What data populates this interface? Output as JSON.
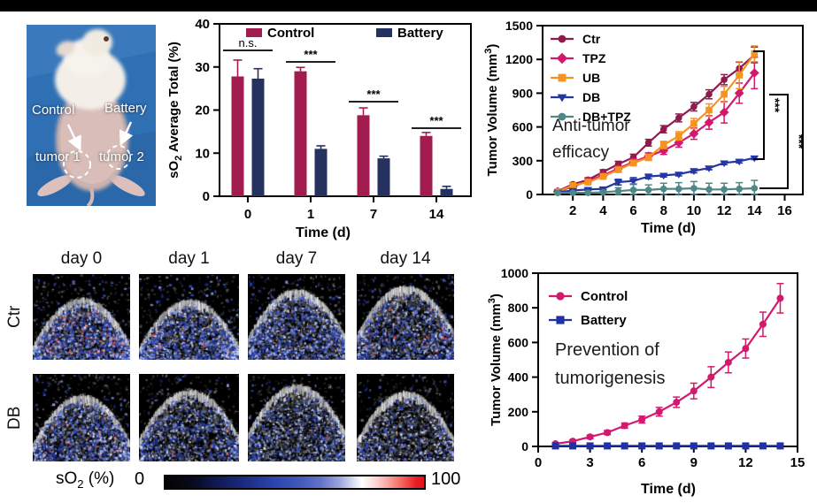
{
  "figure": {
    "background": "#ffffff",
    "top_bar_color": "#000000"
  },
  "mouse_panel": {
    "labels": {
      "control": "Control",
      "battery": "Battery",
      "tumor1": "tumor 1",
      "tumor2": "tumor 2"
    }
  },
  "ultrasound_panel": {
    "col_headers": [
      "day 0",
      "day 1",
      "day 7",
      "day 14"
    ],
    "row_labels": [
      "Ctr",
      "DB"
    ],
    "colorbar": {
      "label_prefix": "sO",
      "label_sub": "2",
      "label_suffix": " (%)",
      "min_label": "0",
      "max_label": "100"
    }
  },
  "chart_data": [
    {
      "id": "so2_bar",
      "type": "bar",
      "title": "",
      "xlabel": "Time (d)",
      "ylabel": "sO2 Average Total (%)",
      "ylabel_parts": {
        "prefix": "sO",
        "sub": "2",
        "suffix": " Average Total (%)"
      },
      "categories": [
        "0",
        "1",
        "7",
        "14"
      ],
      "ylim": [
        0,
        40
      ],
      "yticks": [
        0,
        10,
        20,
        30,
        40
      ],
      "legend_position": "top-inside",
      "series": [
        {
          "name": "Control",
          "color": "#A21C50",
          "values": [
            27.8,
            29.0,
            18.8,
            14.0
          ],
          "errors": [
            3.8,
            0.9,
            1.7,
            0.8
          ]
        },
        {
          "name": "Battery",
          "color": "#25325F",
          "values": [
            27.3,
            11.0,
            8.8,
            1.7
          ],
          "errors": [
            2.3,
            0.7,
            0.5,
            0.6
          ]
        }
      ],
      "significance": [
        {
          "group": 0,
          "label": "n.s."
        },
        {
          "group": 1,
          "label": "***"
        },
        {
          "group": 2,
          "label": "***"
        },
        {
          "group": 3,
          "label": "***"
        }
      ]
    },
    {
      "id": "antitumor",
      "type": "line",
      "title": "",
      "xlabel": "Time (d)",
      "ylabel": "Tumor Volume (mm3)",
      "ylabel_parts": {
        "prefix": "Tumor Volume (mm",
        "sup": "3",
        "suffix": ")"
      },
      "annotation": [
        "Anti-tumor",
        "efficacy"
      ],
      "xlim": [
        0,
        17.2
      ],
      "xticks": [
        2,
        4,
        6,
        8,
        10,
        12,
        14,
        16
      ],
      "ylim": [
        0,
        1500
      ],
      "yticks": [
        0,
        300,
        600,
        900,
        1200,
        1500
      ],
      "x": [
        1,
        2,
        3,
        4,
        5,
        6,
        7,
        8,
        9,
        10,
        11,
        12,
        13,
        14
      ],
      "series": [
        {
          "name": "Ctr",
          "color": "#8F1B4E",
          "marker": "circle",
          "values": [
            30,
            90,
            130,
            200,
            270,
            330,
            460,
            580,
            680,
            780,
            890,
            1020,
            1120,
            1240
          ],
          "errors": [
            10,
            15,
            18,
            20,
            25,
            28,
            30,
            32,
            35,
            38,
            40,
            45,
            55,
            70
          ]
        },
        {
          "name": "TPZ",
          "color": "#D2196D",
          "marker": "diamond",
          "values": [
            25,
            70,
            120,
            170,
            230,
            290,
            340,
            390,
            460,
            540,
            640,
            730,
            900,
            1080
          ],
          "errors": [
            8,
            12,
            15,
            18,
            22,
            26,
            30,
            34,
            40,
            50,
            60,
            95,
            90,
            140
          ]
        },
        {
          "name": "UB",
          "color": "#F6921E",
          "marker": "square",
          "values": [
            25,
            80,
            110,
            160,
            220,
            280,
            330,
            440,
            520,
            630,
            750,
            890,
            1060,
            1250
          ],
          "errors": [
            8,
            12,
            15,
            18,
            22,
            25,
            28,
            32,
            38,
            45,
            55,
            70,
            120,
            70
          ]
        },
        {
          "name": "DB",
          "color": "#2336A3",
          "marker": "triangle-down",
          "values": [
            20,
            35,
            45,
            50,
            110,
            120,
            160,
            170,
            180,
            210,
            235,
            280,
            295,
            325
          ],
          "errors": [
            5,
            6,
            8,
            8,
            25,
            30,
            20,
            15,
            15,
            18,
            15,
            15,
            15,
            15
          ]
        },
        {
          "name": "DB+TPZ",
          "color": "#4F8786",
          "marker": "circle",
          "values": [
            15,
            15,
            15,
            20,
            30,
            40,
            40,
            50,
            50,
            55,
            45,
            45,
            50,
            55
          ],
          "errors": [
            5,
            5,
            6,
            8,
            30,
            55,
            45,
            50,
            55,
            60,
            55,
            55,
            55,
            70
          ]
        }
      ],
      "sig_brackets": [
        {
          "label": "***"
        },
        {
          "label": "***"
        }
      ]
    },
    {
      "id": "prevention",
      "type": "line",
      "title": "",
      "xlabel": "Time (d)",
      "ylabel": "Tumor Volume (mm3)",
      "ylabel_parts": {
        "prefix": "Tumor Volume (mm",
        "sup": "3",
        "suffix": ")"
      },
      "annotation": [
        "Prevention of",
        "tumorigenesis"
      ],
      "xlim": [
        0,
        15
      ],
      "xticks": [
        0,
        3,
        6,
        9,
        12,
        15
      ],
      "ylim": [
        0,
        1000
      ],
      "yticks": [
        0,
        200,
        400,
        600,
        800,
        1000
      ],
      "x": [
        1,
        2,
        3,
        4,
        5,
        6,
        7,
        8,
        9,
        10,
        11,
        12,
        13,
        14
      ],
      "series": [
        {
          "name": "Control",
          "color": "#D2196D",
          "marker": "circle",
          "values": [
            15,
            30,
            55,
            80,
            120,
            155,
            200,
            255,
            320,
            400,
            485,
            565,
            705,
            855
          ],
          "errors": [
            6,
            8,
            10,
            12,
            15,
            20,
            25,
            30,
            45,
            60,
            60,
            55,
            70,
            85
          ]
        },
        {
          "name": "Battery",
          "color": "#2031A6",
          "marker": "square",
          "values": [
            3,
            3,
            3,
            3,
            3,
            3,
            3,
            3,
            3,
            3,
            3,
            3,
            3,
            3
          ],
          "errors": [
            4,
            4,
            4,
            4,
            4,
            4,
            4,
            4,
            4,
            4,
            4,
            4,
            4,
            4
          ]
        }
      ]
    }
  ]
}
